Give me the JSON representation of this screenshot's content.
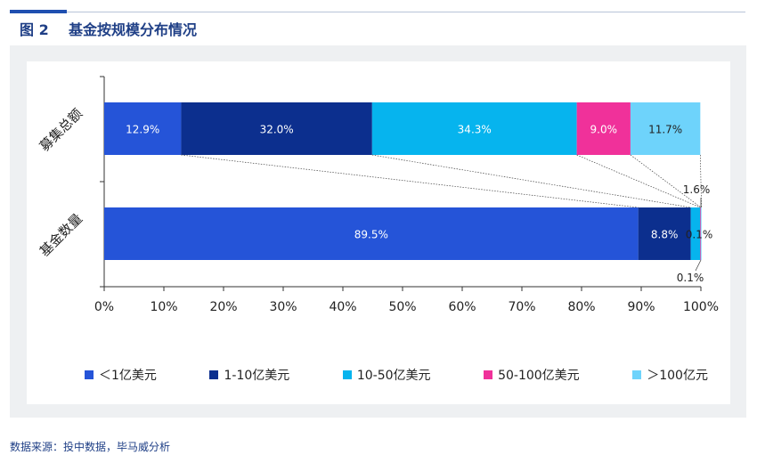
{
  "header": {
    "figure_number": "图 2",
    "title": "基金按规模分布情况"
  },
  "source_note": "数据来源：投中数据，毕马威分析",
  "colors": {
    "lt1": "#2554d8",
    "b1_10": "#0c2f8e",
    "b10_50": "#06b4ee",
    "b50_100": "#f0319a",
    "gt100": "#6ed3fb",
    "accent": "#1f4fb0"
  },
  "chart_data": {
    "type": "bar",
    "orientation": "horizontal",
    "stacked": "percent",
    "categories": [
      "募集总额",
      "基金数量"
    ],
    "xlim": [
      0,
      100
    ],
    "x_ticks": [
      "0%",
      "10%",
      "20%",
      "30%",
      "40%",
      "50%",
      "60%",
      "70%",
      "80%",
      "90%",
      "100%"
    ],
    "series": [
      {
        "name": "＜1亿美元",
        "values": [
          12.9,
          89.5
        ],
        "labels": [
          "12.9%",
          "89.5%"
        ],
        "color": "#2554d8"
      },
      {
        "name": "1-10亿美元",
        "values": [
          32.0,
          8.8
        ],
        "labels": [
          "32.0%",
          "8.8%"
        ],
        "color": "#0c2f8e"
      },
      {
        "name": "10-50亿美元",
        "values": [
          34.3,
          1.6
        ],
        "labels": [
          "34.3%",
          "1.6%"
        ],
        "color": "#06b4ee"
      },
      {
        "name": "50-100亿美元",
        "values": [
          9.0,
          0.1
        ],
        "labels": [
          "9.0%",
          "0.1%"
        ],
        "color": "#f0319a"
      },
      {
        "name": "＞100亿元",
        "values": [
          11.7,
          0.1
        ],
        "labels": [
          "11.7%",
          "0.1%"
        ],
        "color": "#6ed3fb"
      }
    ],
    "grid": false,
    "legend_position": "bottom"
  }
}
